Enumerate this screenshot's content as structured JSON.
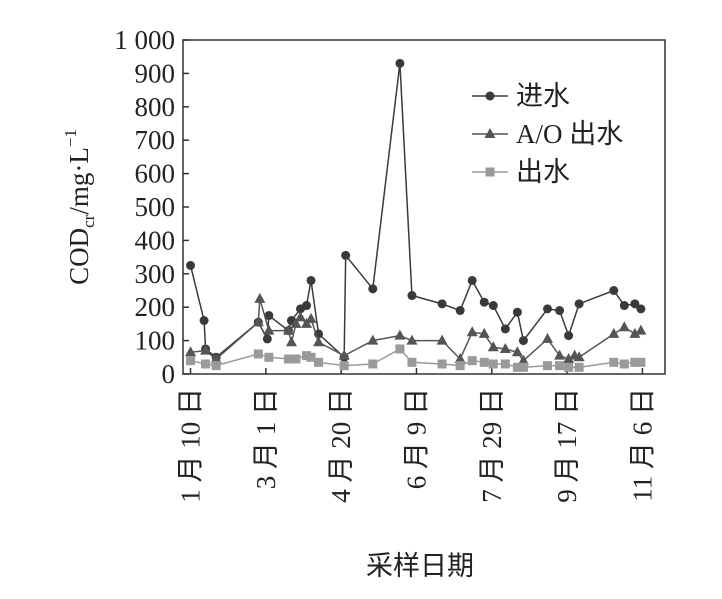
{
  "chart_data": {
    "type": "line",
    "ylabel": {
      "main": "COD",
      "sub": "cr",
      "unit": "/mg·L",
      "sup": "−1"
    },
    "xlabel": "采样日期",
    "xlim": [
      -5,
      315
    ],
    "xticks": [
      {
        "value": 0,
        "label": "1 月 10 日"
      },
      {
        "value": 50,
        "label": "3 月 1 日"
      },
      {
        "value": 100,
        "label": "4 月 20 日"
      },
      {
        "value": 150,
        "label": "6 月 9 日"
      },
      {
        "value": 200,
        "label": "7 月 29 日"
      },
      {
        "value": 250,
        "label": "9 月 17 日"
      },
      {
        "value": 300,
        "label": "11 月 6 日"
      }
    ],
    "ylim": [
      0,
      1000
    ],
    "yticks": [
      0,
      100,
      200,
      300,
      400,
      500,
      600,
      700,
      800,
      900,
      {
        "value": 1000,
        "label": "1 000"
      }
    ],
    "legend": "upper right",
    "series": [
      {
        "name": "进水",
        "color": "#3a3a3a",
        "marker": "circle",
        "x": [
          0,
          9,
          10,
          17,
          45,
          51,
          52,
          65,
          67,
          73,
          77,
          80,
          85,
          102,
          103,
          121,
          139,
          147,
          167,
          179,
          187,
          195,
          201,
          209,
          217,
          221,
          237,
          245,
          251,
          258,
          281,
          288,
          295,
          299
        ],
        "values": [
          325,
          160,
          75,
          50,
          155,
          105,
          175,
          130,
          160,
          195,
          205,
          280,
          120,
          50,
          355,
          255,
          930,
          235,
          210,
          190,
          280,
          215,
          205,
          135,
          185,
          100,
          195,
          190,
          115,
          210,
          250,
          205,
          210,
          195
        ]
      },
      {
        "name": "A/O 出水",
        "color": "#555555",
        "marker": "triangle",
        "x": [
          0,
          10,
          17,
          45,
          46,
          52,
          65,
          67,
          70,
          73,
          77,
          80,
          85,
          102,
          121,
          139,
          147,
          167,
          179,
          187,
          195,
          201,
          209,
          217,
          221,
          237,
          245,
          251,
          255,
          258,
          281,
          288,
          295,
          299
        ],
        "values": [
          65,
          70,
          45,
          155,
          225,
          130,
          130,
          95,
          150,
          170,
          150,
          165,
          95,
          55,
          100,
          115,
          100,
          100,
          45,
          125,
          120,
          80,
          75,
          65,
          40,
          105,
          55,
          45,
          55,
          50,
          120,
          140,
          120,
          130
        ]
      },
      {
        "name": "出水",
        "color": "#9a9a9a",
        "marker": "square",
        "x": [
          0,
          10,
          17,
          45,
          52,
          65,
          70,
          77,
          80,
          85,
          102,
          121,
          139,
          147,
          167,
          179,
          187,
          195,
          201,
          209,
          217,
          221,
          237,
          245,
          251,
          258,
          281,
          288,
          295,
          299
        ],
        "values": [
          40,
          30,
          25,
          60,
          50,
          45,
          45,
          55,
          50,
          35,
          25,
          30,
          75,
          35,
          30,
          25,
          40,
          35,
          30,
          30,
          20,
          20,
          25,
          25,
          20,
          20,
          35,
          30,
          35,
          35
        ]
      }
    ]
  }
}
